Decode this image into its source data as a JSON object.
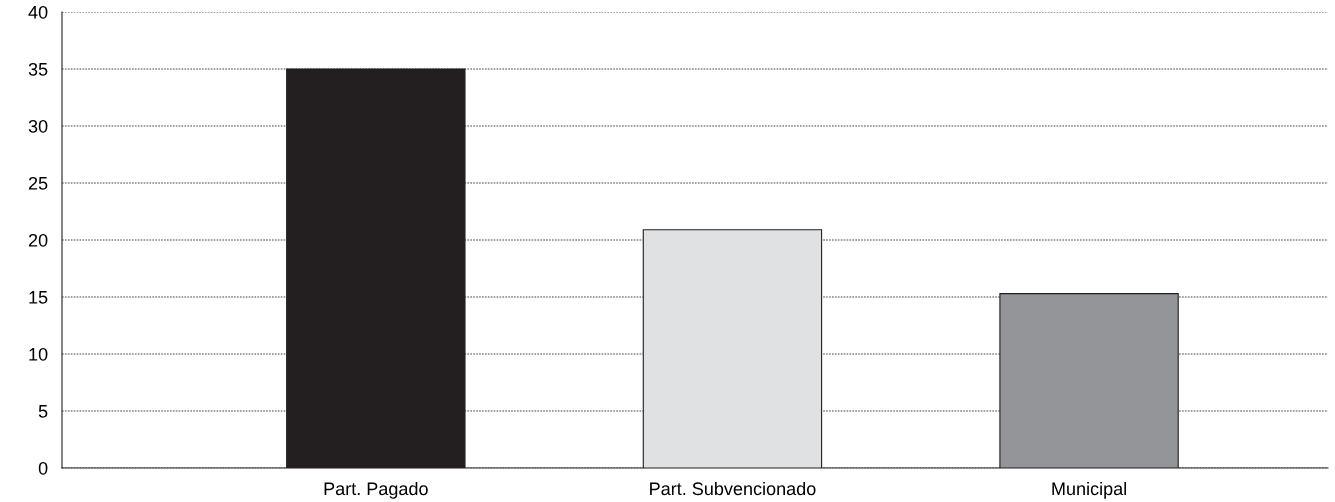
{
  "chart_data": {
    "type": "bar",
    "categories": [
      "Part. Pagado",
      "Part. Subvencionado",
      "Municipal"
    ],
    "values": [
      35,
      20.9,
      15.3
    ],
    "colors": [
      "#231f20",
      "#e0e1e3",
      "#939598"
    ],
    "ylim": [
      0,
      40
    ],
    "yticks": [
      0,
      5,
      10,
      15,
      20,
      25,
      30,
      35,
      40
    ],
    "grid": "y"
  }
}
